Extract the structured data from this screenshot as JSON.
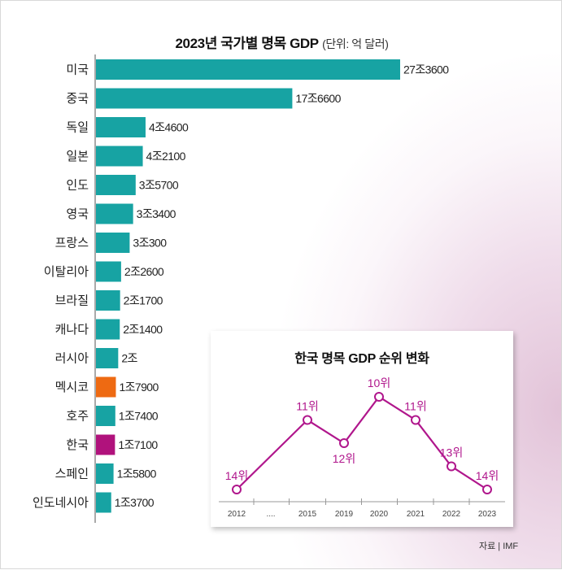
{
  "title": {
    "main": "2023년 국가별 명목 GDP",
    "sub": "(단위: 억 달러)"
  },
  "chart_data": [
    {
      "type": "bar",
      "orientation": "horizontal",
      "title": "2023년 국가별 명목 GDP",
      "unit": "(단위: 억 달러)",
      "categories": [
        "미국",
        "중국",
        "독일",
        "일본",
        "인도",
        "영국",
        "프랑스",
        "이탈리아",
        "브라질",
        "캐나다",
        "러시아",
        "멕시코",
        "호주",
        "한국",
        "스페인",
        "인도네시아"
      ],
      "values": [
        273600,
        176600,
        44600,
        42100,
        35700,
        33400,
        30300,
        22600,
        21700,
        21400,
        20000,
        17900,
        17400,
        17100,
        15800,
        13700
      ],
      "value_labels": [
        "27조3600",
        "17조6600",
        "4조4600",
        "4조2100",
        "3조5700",
        "3조3400",
        "3조300",
        "2조2600",
        "2조1700",
        "2조1400",
        "2조",
        "1조7900",
        "1조7400",
        "1조7100",
        "1조5800",
        "1조3700"
      ],
      "colors": {
        "default": "#17a3a3",
        "highlight": {
          "멕시코": "#ee6a12",
          "한국": "#b0127c"
        }
      }
    },
    {
      "type": "line",
      "title": "한국 명목 GDP 순위 변화",
      "x": [
        "2012",
        "....",
        "2015",
        "2019",
        "2020",
        "2021",
        "2022",
        "2023"
      ],
      "points": [
        {
          "year": "2012",
          "rank": 14,
          "label": "14위"
        },
        {
          "year": "2015",
          "rank": 11,
          "label": "11위"
        },
        {
          "year": "2019",
          "rank": 12,
          "label": "12위"
        },
        {
          "year": "2020",
          "rank": 10,
          "label": "10위"
        },
        {
          "year": "2021",
          "rank": 11,
          "label": "11위"
        },
        {
          "year": "2022",
          "rank": 13,
          "label": "13위"
        },
        {
          "year": "2023",
          "rank": 14,
          "label": "14위"
        }
      ],
      "line_color": "#b0168c"
    }
  ],
  "source": "자료 | IMF"
}
